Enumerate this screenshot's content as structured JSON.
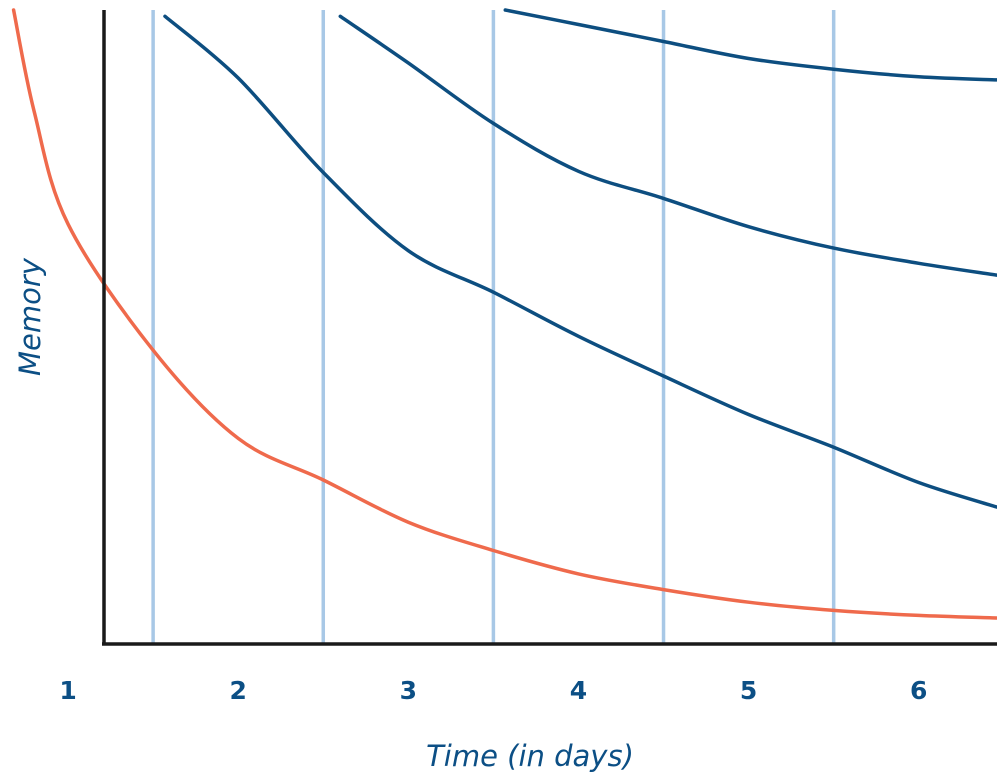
{
  "chart_data": {
    "type": "line",
    "title": "",
    "xlabel": "Time (in days)",
    "ylabel": "Memory",
    "x_tick_labels": [
      "1",
      "2",
      "3",
      "4",
      "5",
      "6"
    ],
    "xlim": [
      0.6,
      6.46
    ],
    "ylim": [
      0,
      100
    ],
    "grid": "vertical",
    "legend": "none",
    "series": [
      {
        "color": "#ef6a4c",
        "points": [
          [
            0.68,
            100
          ],
          [
            0.8,
            84
          ],
          [
            1.0,
            66
          ],
          [
            1.5,
            46
          ],
          [
            2.0,
            32
          ],
          [
            2.5,
            25.4
          ],
          [
            3.0,
            18.7
          ],
          [
            3.5,
            14.2
          ],
          [
            4.0,
            10.5
          ],
          [
            4.5,
            8.0
          ],
          [
            5.0,
            6.0
          ],
          [
            5.5,
            4.7
          ],
          [
            6.0,
            3.9
          ],
          [
            6.46,
            3.5
          ]
        ]
      },
      {
        "color": "#0d4e80",
        "points": [
          [
            1.57,
            99.0
          ],
          [
            2.0,
            89.2
          ],
          [
            2.5,
            74.2
          ],
          [
            3.0,
            61.8
          ],
          [
            3.5,
            55.2
          ],
          [
            4.0,
            48.2
          ],
          [
            4.5,
            41.9
          ],
          [
            5.0,
            35.8
          ],
          [
            5.5,
            30.6
          ],
          [
            6.0,
            25.0
          ],
          [
            6.46,
            21.1
          ]
        ]
      },
      {
        "color": "#0d4e80",
        "points": [
          [
            2.6,
            99.0
          ],
          [
            3.0,
            91.6
          ],
          [
            3.5,
            82.0
          ],
          [
            4.0,
            74.4
          ],
          [
            4.5,
            70.1
          ],
          [
            5.0,
            65.6
          ],
          [
            5.5,
            62.2
          ],
          [
            6.0,
            59.8
          ],
          [
            6.46,
            57.9
          ]
        ]
      },
      {
        "color": "#0d4e80",
        "points": [
          [
            3.57,
            100
          ],
          [
            4.0,
            97.7
          ],
          [
            4.5,
            95.0
          ],
          [
            5.0,
            92.3
          ],
          [
            5.5,
            90.6
          ],
          [
            6.0,
            89.4
          ],
          [
            6.46,
            88.9
          ]
        ]
      }
    ],
    "gridline_color": "#a8c8e6",
    "axis_color": "#1a1a1a"
  }
}
